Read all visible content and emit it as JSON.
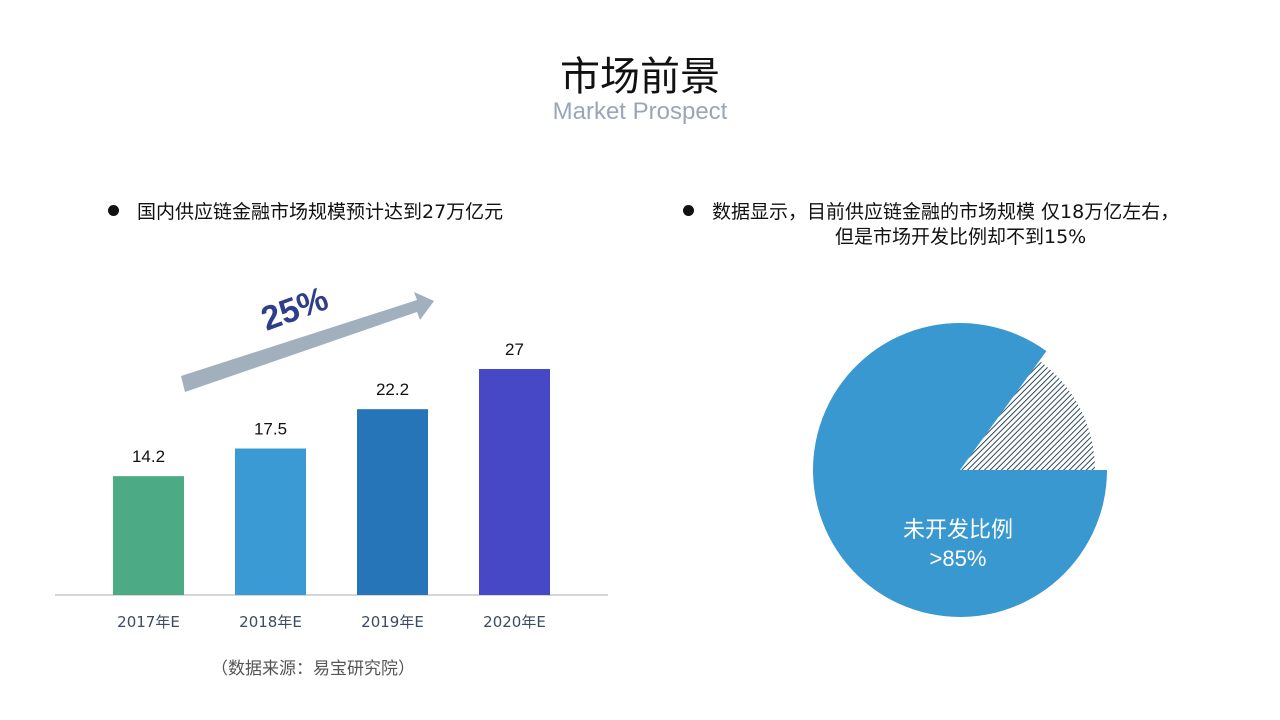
{
  "header": {
    "title": "市场前景",
    "subtitle": "Market Prospect"
  },
  "left": {
    "bullet": "国内供应链金融市场规模预计达到27万亿元",
    "growth_label": "25%",
    "source": "（数据来源：易宝研究院）"
  },
  "right": {
    "bullet_line1": "数据显示，目前供应链金融的市场规模 仅18万亿左右，",
    "bullet_line2": "但是市场开发比例却不到15%"
  },
  "chart_data": [
    {
      "type": "bar",
      "categories": [
        "2017年E",
        "2018年E",
        "2019年E",
        "2020年E"
      ],
      "values": [
        14.2,
        17.5,
        22.2,
        27
      ],
      "data_labels": [
        "14.2",
        "17.5",
        "22.2",
        "27"
      ],
      "colors": [
        "#4caa85",
        "#3a9ad3",
        "#2675b8",
        "#4748c6"
      ],
      "ylim": [
        0,
        27
      ],
      "grid": false,
      "annotation": "25%"
    },
    {
      "type": "pie",
      "slices": [
        {
          "label": "未开发比例",
          "value_label": ">85%",
          "value": 85,
          "color": "#3a98d0"
        },
        {
          "value": 15,
          "pattern": "hatched",
          "color": "#2d4a5a"
        }
      ]
    }
  ]
}
